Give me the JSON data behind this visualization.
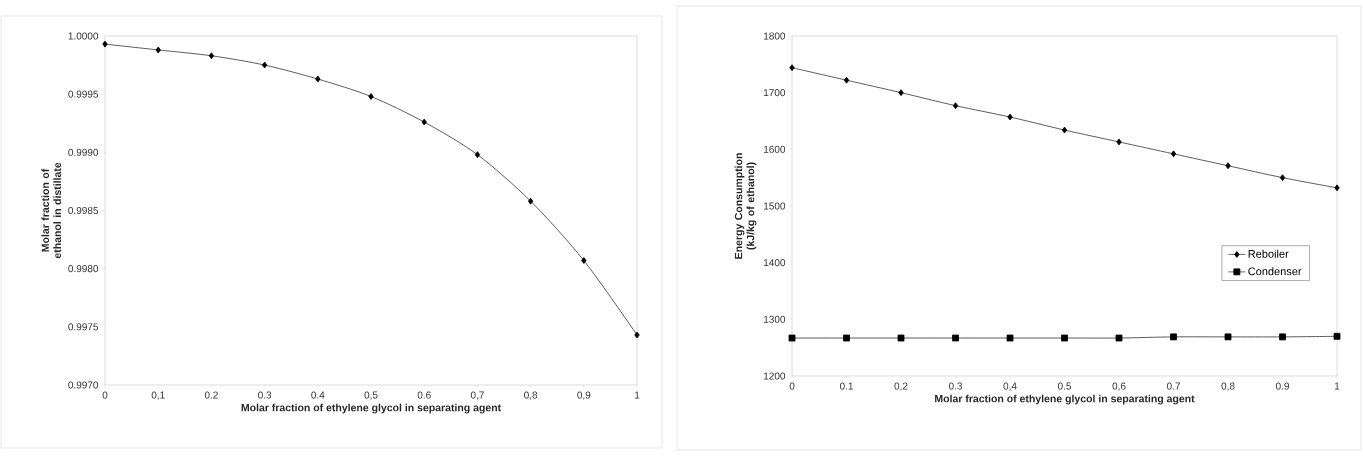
{
  "chart_data": [
    {
      "type": "line",
      "xlabel": "Molar fraction of ethylene glycol in separating agent",
      "ylabel": "Molar fraction of ethanol in distillate",
      "marker": "diamond",
      "x": [
        0,
        0.1,
        0.2,
        0.3,
        0.4,
        0.5,
        0.6,
        0.7,
        0.8,
        0.9,
        1
      ],
      "series": [
        {
          "color": "#000000",
          "values": [
            0.99993,
            0.99988,
            0.99983,
            0.99975,
            0.99963,
            0.99948,
            0.99926,
            0.99898,
            0.99858,
            0.99807,
            0.99743
          ]
        }
      ],
      "xlim": [
        0,
        1
      ],
      "ylim": [
        0.997,
        1.0
      ],
      "xticks": [
        0,
        {
          "value": 0.1,
          "label": "0,1"
        },
        {
          "value": 0.2,
          "label": "0.2"
        },
        {
          "value": 0.3,
          "label": "0.3"
        },
        {
          "value": 0.4,
          "label": "0.4"
        },
        {
          "value": 0.5,
          "label": "0,5"
        },
        {
          "value": 0.6,
          "label": "0.6"
        },
        {
          "value": 0.7,
          "label": "0,7"
        },
        {
          "value": 0.8,
          "label": "0,8"
        },
        {
          "value": 0.9,
          "label": "0,9"
        },
        1
      ],
      "yticks": [
        {
          "value": 0.997,
          "label": "0.9970"
        },
        {
          "value": 0.9975,
          "label": "0.9975"
        },
        {
          "value": 0.998,
          "label": "0.9980"
        },
        {
          "value": 0.9985,
          "label": "0.9985"
        },
        {
          "value": 0.999,
          "label": "0.9990"
        },
        {
          "value": 0.9995,
          "label": "0.9995"
        },
        {
          "value": 1.0,
          "label": "1.0000"
        }
      ]
    },
    {
      "type": "line",
      "xlabel": "Molar fraction of ethylene glycol in separating agent",
      "ylabel": "Energy Consumption (kJ/kg of ethanol)",
      "legend": "right",
      "x": [
        0,
        0.1,
        0.2,
        0.3,
        0.4,
        0.5,
        0.6,
        0.7,
        0.8,
        0.9,
        1
      ],
      "series": [
        {
          "name": "Reboiler",
          "color": "#000000",
          "marker": "diamond",
          "values": [
            1744,
            1722,
            1700,
            1677,
            1657,
            1634,
            1613,
            1592,
            1571,
            1550,
            1532
          ]
        },
        {
          "name": "Condenser",
          "color": "#000000",
          "marker": "square",
          "values": [
            1267,
            1267,
            1267,
            1267,
            1267,
            1267,
            1267,
            1269,
            1269,
            1269,
            1270
          ]
        }
      ],
      "xlim": [
        0,
        1
      ],
      "ylim": [
        1200,
        1800
      ],
      "xticks": [
        0,
        {
          "value": 0.1,
          "label": "0.1"
        },
        {
          "value": 0.2,
          "label": "0,2"
        },
        {
          "value": 0.3,
          "label": "0.3"
        },
        {
          "value": 0.4,
          "label": "0,4"
        },
        {
          "value": 0.5,
          "label": "0.5"
        },
        {
          "value": 0.6,
          "label": "0,6"
        },
        {
          "value": 0.7,
          "label": "0.7"
        },
        {
          "value": 0.8,
          "label": "0,8"
        },
        {
          "value": 0.9,
          "label": "0.9"
        },
        1
      ],
      "yticks": [
        1200,
        1300,
        1400,
        1500,
        1600,
        1700,
        1800
      ]
    }
  ]
}
